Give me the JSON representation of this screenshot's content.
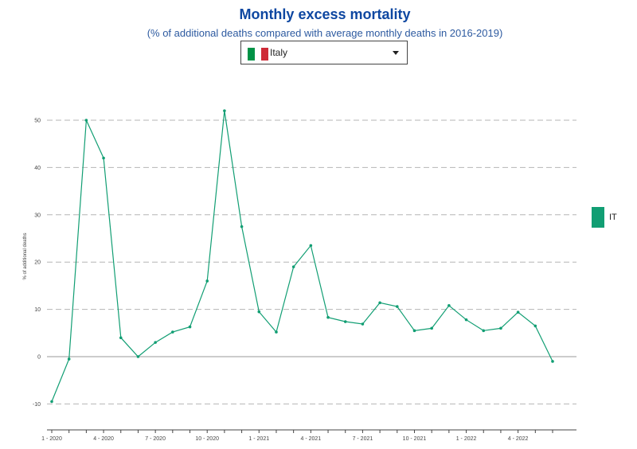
{
  "header": {
    "title": "Monthly excess mortality",
    "subtitle": "(% of additional deaths compared with average monthly deaths in 2016-2019)"
  },
  "country_selector": {
    "selected": "Italy",
    "flag_icon": "italy-flag-icon",
    "dropdown_icon": "caret-down-icon"
  },
  "legend": {
    "label": "IT",
    "color": "#119e73"
  },
  "chart_data": {
    "type": "line",
    "title": "Monthly excess mortality",
    "subtitle": "(% of additional deaths compared with average monthly deaths in 2016-2019)",
    "ylabel": "% of additional deaths",
    "xlabel": "",
    "ylim": [
      -16,
      60
    ],
    "yticks": [
      -10,
      0,
      10,
      20,
      30,
      40,
      50
    ],
    "grid": "horizontal dashed",
    "legend_position": "right",
    "x": [
      "1 - 2020",
      "2 - 2020",
      "3 - 2020",
      "4 - 2020",
      "5 - 2020",
      "6 - 2020",
      "7 - 2020",
      "8 - 2020",
      "9 - 2020",
      "10 - 2020",
      "11 - 2020",
      "12 - 2020",
      "1 - 2021",
      "2 - 2021",
      "3 - 2021",
      "4 - 2021",
      "5 - 2021",
      "6 - 2021",
      "7 - 2021",
      "8 - 2021",
      "9 - 2021",
      "10 - 2021",
      "11 - 2021",
      "12 - 2021",
      "1 - 2022",
      "2 - 2022",
      "3 - 2022",
      "4 - 2022",
      "5 - 2022",
      "6 - 2022"
    ],
    "xtick_labels": [
      "1 - 2020",
      "4 - 2020",
      "7 - 2020",
      "10 - 2020",
      "1 - 2021",
      "4 - 2021",
      "7 - 2021",
      "10 - 2021",
      "1 - 2022",
      "4 - 2022"
    ],
    "series": [
      {
        "name": "IT",
        "color": "#119e73",
        "values": [
          -9.5,
          -0.5,
          50,
          42,
          4,
          0,
          3,
          5.2,
          6.3,
          16,
          52,
          27.5,
          9.5,
          5.2,
          19,
          23.5,
          8.3,
          7.4,
          6.9,
          11.4,
          10.6,
          5.5,
          6,
          10.8,
          7.8,
          5.5,
          6,
          9.4,
          6.5,
          -1
        ]
      }
    ]
  }
}
